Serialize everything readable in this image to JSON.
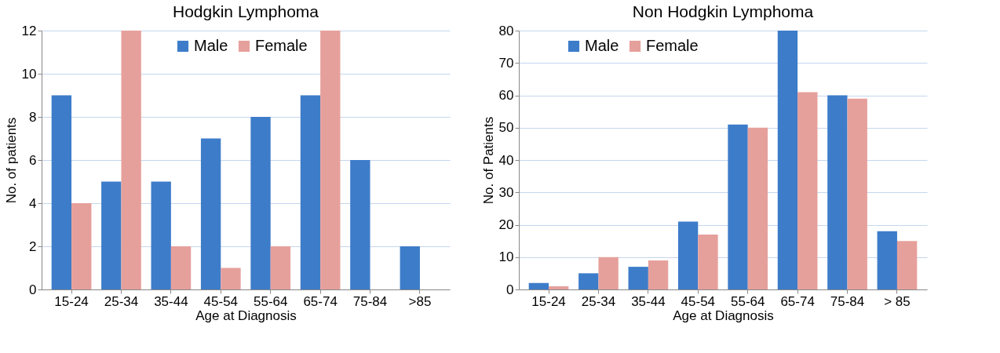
{
  "chart_data": [
    {
      "type": "bar",
      "title": "Hodgkin Lymphoma",
      "xlabel": "Age at Diagnosis",
      "ylabel": "No. of patients",
      "categories": [
        "15-24",
        "25-34",
        "35-44",
        "45-54",
        "55-64",
        "65-74",
        "75-84",
        ">85"
      ],
      "series": [
        {
          "name": "Male",
          "color": "#3d7cc9",
          "values": [
            9,
            5,
            5,
            7,
            8,
            9,
            6,
            2
          ]
        },
        {
          "name": "Female",
          "color": "#e6a09c",
          "values": [
            4,
            12,
            2,
            1,
            2,
            12,
            0,
            0
          ]
        }
      ],
      "ylim": [
        0,
        12
      ],
      "yticks": [
        0,
        2,
        4,
        6,
        8,
        10,
        12
      ],
      "grid": "y",
      "legend": "top"
    },
    {
      "type": "bar",
      "title": "Non Hodgkin Lymphoma",
      "xlabel": "Age at Diagnosis",
      "ylabel": "No. of Patients",
      "categories": [
        "15-24",
        "25-34",
        "35-44",
        "45-54",
        "55-64",
        "65-74",
        "75-84",
        "> 85"
      ],
      "series": [
        {
          "name": "Male",
          "color": "#3d7cc9",
          "values": [
            2,
            5,
            7,
            21,
            51,
            80,
            60,
            18
          ]
        },
        {
          "name": "Female",
          "color": "#e6a09c",
          "values": [
            1,
            10,
            9,
            17,
            50,
            61,
            59,
            15
          ]
        }
      ],
      "ylim": [
        0,
        80
      ],
      "yticks": [
        0,
        10,
        20,
        30,
        40,
        50,
        60,
        70,
        80
      ],
      "grid": "y",
      "legend": "top left"
    }
  ]
}
